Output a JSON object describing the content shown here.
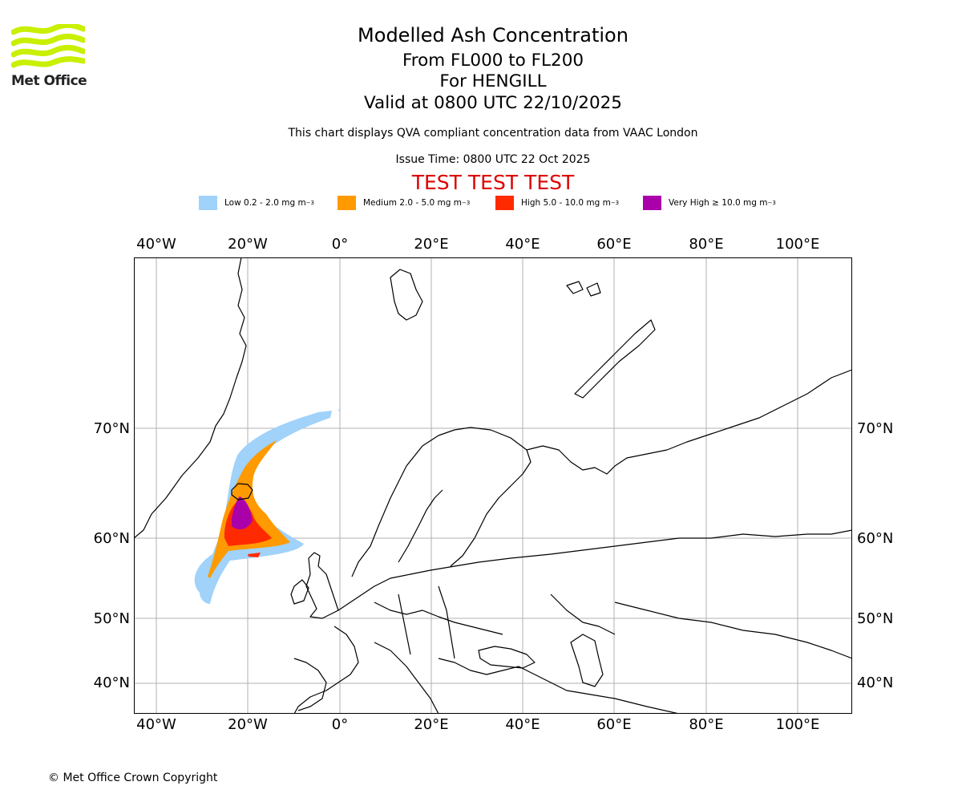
{
  "logo": {
    "name": "Met Office",
    "accent": "#c8f000"
  },
  "title": {
    "line1": "Modelled Ash Concentration",
    "line2": "From FL000 to FL200",
    "line3": "For HENGILL",
    "line4": "Valid at 0800 UTC 22/10/2025"
  },
  "subtitle": "This chart displays QVA compliant concentration data from VAAC London",
  "issue_time": "Issue Time: 0800 UTC 22 Oct 2025",
  "test_banner": "TEST TEST TEST",
  "legend": [
    {
      "label": "Low 0.2 - 2.0 mg m",
      "color": "#a0d2fa"
    },
    {
      "label": "Medium 2.0 - 5.0 mg m",
      "color": "#ff9a00"
    },
    {
      "label": "High 5.0 - 10.0 mg m",
      "color": "#ff2a00"
    },
    {
      "label": "Very High ≥ 10.0 mg m",
      "color": "#aa00aa"
    }
  ],
  "legend_unit_exponent": "−3",
  "axes": {
    "lon_ticks": [
      "40°W",
      "20°W",
      "0°",
      "20°E",
      "40°E",
      "60°E",
      "80°E",
      "100°E"
    ],
    "lat_ticks": [
      "70°N",
      "60°N",
      "50°N",
      "40°N"
    ]
  },
  "copyright": "© Met Office Crown Copyright",
  "colors": {
    "grid": "#b0b0b0",
    "coast": "#000000",
    "test": "#dd0000"
  }
}
